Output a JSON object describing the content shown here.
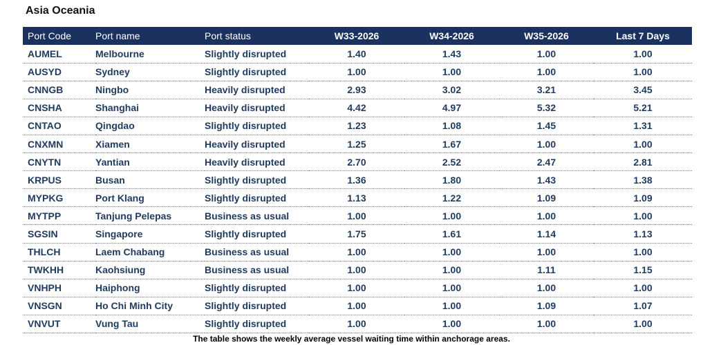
{
  "title": "Asia Oceania",
  "headers": [
    "Port Code",
    "Port name",
    "Port status",
    "W33-2026",
    "W34-2026",
    "W35-2026",
    "Last 7 Days"
  ],
  "rows": [
    {
      "code": "AUMEL",
      "name": "Melbourne",
      "status": "Slightly disrupted",
      "w33": "1.40",
      "w34": "1.43",
      "w35": "1.00",
      "last7": "1.00"
    },
    {
      "code": "AUSYD",
      "name": "Sydney",
      "status": "Slightly disrupted",
      "w33": "1.00",
      "w34": "1.00",
      "w35": "1.00",
      "last7": "1.00"
    },
    {
      "code": "CNNGB",
      "name": "Ningbo",
      "status": "Heavily disrupted",
      "w33": "2.93",
      "w34": "3.02",
      "w35": "3.21",
      "last7": "3.45"
    },
    {
      "code": "CNSHA",
      "name": "Shanghai",
      "status": "Heavily disrupted",
      "w33": "4.42",
      "w34": "4.97",
      "w35": "5.32",
      "last7": "5.21"
    },
    {
      "code": "CNTAO",
      "name": "Qingdao",
      "status": "Slightly disrupted",
      "w33": "1.23",
      "w34": "1.08",
      "w35": "1.45",
      "last7": "1.31"
    },
    {
      "code": "CNXMN",
      "name": "Xiamen",
      "status": "Heavily disrupted",
      "w33": "1.25",
      "w34": "1.67",
      "w35": "1.00",
      "last7": "1.00"
    },
    {
      "code": "CNYTN",
      "name": "Yantian",
      "status": "Heavily disrupted",
      "w33": "2.70",
      "w34": "2.52",
      "w35": "2.47",
      "last7": "2.81"
    },
    {
      "code": "KRPUS",
      "name": "Busan",
      "status": "Slightly disrupted",
      "w33": "1.36",
      "w34": "1.80",
      "w35": "1.43",
      "last7": "1.38"
    },
    {
      "code": "MYPKG",
      "name": "Port Klang",
      "status": "Slightly disrupted",
      "w33": "1.13",
      "w34": "1.22",
      "w35": "1.09",
      "last7": "1.09"
    },
    {
      "code": "MYTPP",
      "name": "Tanjung Pelepas",
      "status": "Business as usual",
      "w33": "1.00",
      "w34": "1.00",
      "w35": "1.00",
      "last7": "1.00"
    },
    {
      "code": "SGSIN",
      "name": "Singapore",
      "status": "Slightly disrupted",
      "w33": "1.75",
      "w34": "1.61",
      "w35": "1.14",
      "last7": "1.13"
    },
    {
      "code": "THLCH",
      "name": "Laem Chabang",
      "status": "Business as usual",
      "w33": "1.00",
      "w34": "1.00",
      "w35": "1.00",
      "last7": "1.00"
    },
    {
      "code": "TWKHH",
      "name": "Kaohsiung",
      "status": "Business as usual",
      "w33": "1.00",
      "w34": "1.00",
      "w35": "1.11",
      "last7": "1.15"
    },
    {
      "code": "VNHPH",
      "name": "Haiphong",
      "status": "Slightly disrupted",
      "w33": "1.00",
      "w34": "1.00",
      "w35": "1.00",
      "last7": "1.00"
    },
    {
      "code": "VNSGN",
      "name": "Ho Chi Minh City",
      "status": "Slightly disrupted",
      "w33": "1.00",
      "w34": "1.00",
      "w35": "1.09",
      "last7": "1.07"
    },
    {
      "code": "VNVUT",
      "name": "Vung Tau",
      "status": "Slightly disrupted",
      "w33": "1.00",
      "w34": "1.00",
      "w35": "1.00",
      "last7": "1.00"
    }
  ],
  "caption": "The table shows the weekly average vessel waiting time within anchorage areas.",
  "colors": {
    "header_bg": "#1b3261",
    "header_text": "#ffffff",
    "cell_text": "#1f3a5f"
  }
}
